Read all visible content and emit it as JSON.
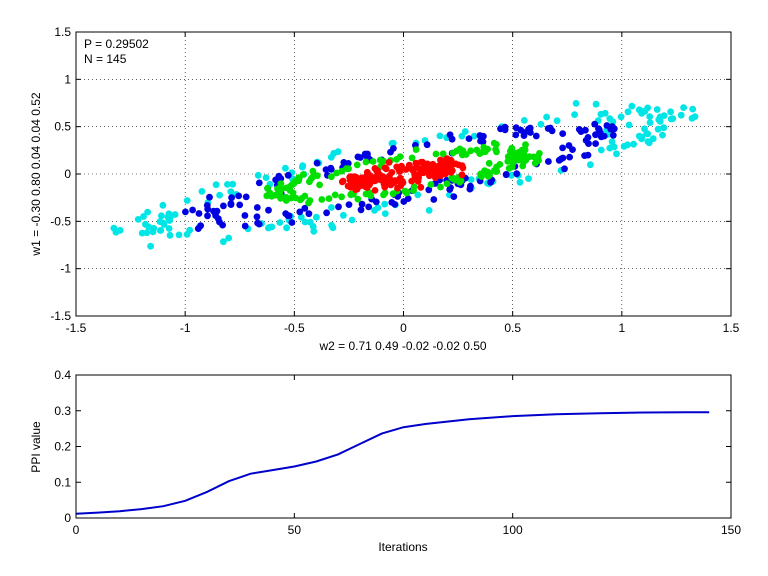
{
  "chart_data": [
    {
      "type": "scatter",
      "xlim": [
        -1.5,
        1.5
      ],
      "ylim": [
        -1.5,
        1.5
      ],
      "xticks": [
        "-1.5",
        "-1",
        "-0.5",
        "0",
        "0.5",
        "1",
        "1.5"
      ],
      "yticks": [
        "-1.5",
        "-1",
        "-0.5",
        "0",
        "0.5",
        "1",
        "1.5"
      ],
      "xlabel": "w2 = 0.71  0.49  -0.02  -0.02  0.50",
      "ylabel": "w1 = -0.30  0.80  0.04  0.04  0.52",
      "grid": true,
      "annotations": [
        "P = 0.29502",
        "N = 145"
      ],
      "series": [
        {
          "color": "#00e5e5",
          "ring": {
            "a": 1.32,
            "b": 0.28,
            "ang": 0.47,
            "jitter": 0.07,
            "n": 165
          }
        },
        {
          "color": "#0000e0",
          "ring": {
            "a": 1.0,
            "b": 0.22,
            "ang": 0.47,
            "jitter": 0.06,
            "n": 160
          }
        },
        {
          "color": "#00e000",
          "ring": {
            "a": 0.6,
            "b": 0.16,
            "ang": 0.37,
            "jitter": 0.05,
            "n": 155
          }
        },
        {
          "color": "#ff0000",
          "ring": {
            "a": 0.24,
            "b": 0.06,
            "ang": 0.4,
            "jitter": 0.05,
            "n": 175
          }
        }
      ]
    },
    {
      "type": "line",
      "xlim": [
        0,
        150
      ],
      "ylim": [
        0,
        0.4
      ],
      "xticks": [
        "0",
        "50",
        "100",
        "150"
      ],
      "yticks": [
        "0",
        "0.1",
        "0.2",
        "0.3",
        "0.4"
      ],
      "xlabel": "Iterations",
      "ylabel": "PPI value",
      "grid": false,
      "color": "#0000cc",
      "x": [
        0,
        5,
        10,
        15,
        20,
        25,
        30,
        35,
        40,
        45,
        50,
        55,
        60,
        65,
        70,
        75,
        80,
        90,
        100,
        110,
        120,
        130,
        140,
        145
      ],
      "y": [
        0.012,
        0.015,
        0.019,
        0.025,
        0.033,
        0.048,
        0.073,
        0.103,
        0.124,
        0.134,
        0.144,
        0.158,
        0.178,
        0.207,
        0.236,
        0.254,
        0.263,
        0.276,
        0.285,
        0.29,
        0.293,
        0.295,
        0.296,
        0.296
      ]
    }
  ]
}
